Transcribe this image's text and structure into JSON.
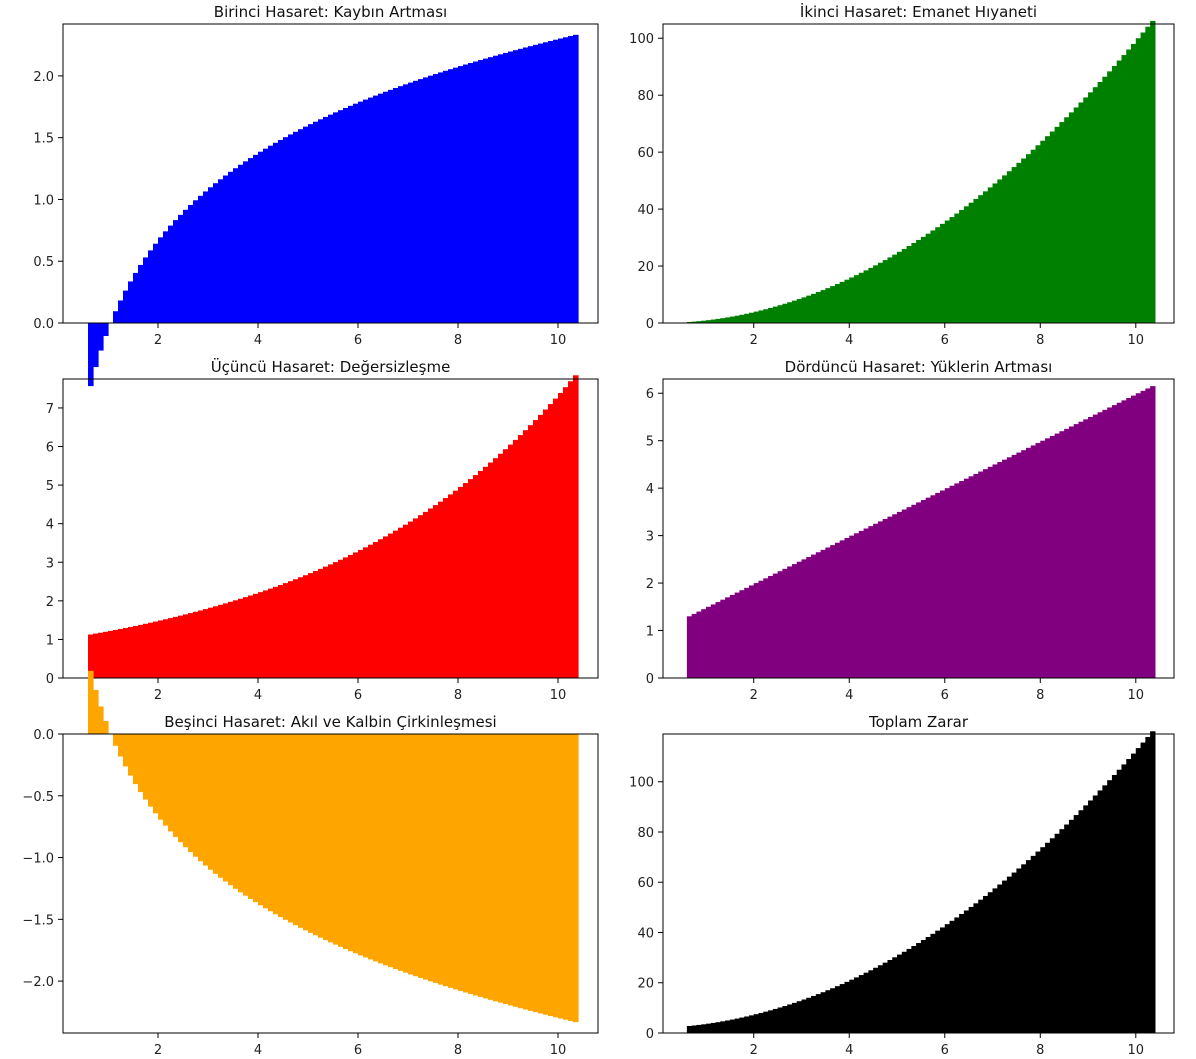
{
  "chart_data": [
    {
      "type": "bar",
      "title": "Birinci Hasaret: Kaybın Artması",
      "color": "#0000ff",
      "x_formula": "x_i = 0.6 + 0.1*i, i = 0..97 (x from 0.6 to 10.3), bar width 0.1",
      "y_formula": "ln(x)",
      "xlim": [
        0.1,
        10.8
      ],
      "ylim": [
        0,
        2.42
      ],
      "xticks": [
        2,
        4,
        6,
        8,
        10
      ],
      "xtick_labels": [
        "2",
        "4",
        "6",
        "8",
        "10"
      ],
      "yticks": [
        0,
        0.5,
        1.0,
        1.5,
        2.0
      ],
      "ytick_labels": [
        "0.0",
        "0.5",
        "1.0",
        "1.5",
        "2.0"
      ]
    },
    {
      "type": "bar",
      "title": "İkinci Hasaret: Emanet Hıyaneti",
      "color": "#008000",
      "x_formula": "x_i = 0.6 + 0.1*i, i = 0..97, bar width 0.1",
      "y_formula": "x^2",
      "xlim": [
        0.1,
        10.8
      ],
      "ylim": [
        0,
        105
      ],
      "xticks": [
        2,
        4,
        6,
        8,
        10
      ],
      "xtick_labels": [
        "2",
        "4",
        "6",
        "8",
        "10"
      ],
      "yticks": [
        0,
        20,
        40,
        60,
        80,
        100
      ],
      "ytick_labels": [
        "0",
        "20",
        "40",
        "60",
        "80",
        "100"
      ]
    },
    {
      "type": "bar",
      "title": "Üçüncü Hasaret: Değersizleşme",
      "color": "#ff0000",
      "x_formula": "x_i = 0.6 + 0.1*i, i = 0..97, bar width 0.1",
      "y_formula": "exp(0.2x)",
      "xlim": [
        0.1,
        10.8
      ],
      "ylim": [
        0,
        7.75
      ],
      "xticks": [
        2,
        4,
        6,
        8,
        10
      ],
      "xtick_labels": [
        "2",
        "4",
        "6",
        "8",
        "10"
      ],
      "yticks": [
        0,
        1,
        2,
        3,
        4,
        5,
        6,
        7
      ],
      "ytick_labels": [
        "0",
        "1",
        "2",
        "3",
        "4",
        "5",
        "6",
        "7"
      ]
    },
    {
      "type": "bar",
      "title": "Dördüncü Hasaret: Yüklerin Artması",
      "color": "#800080",
      "x_formula": "x_i = 0.6 + 0.1*i, i = 0..97, bar width 0.1",
      "y_formula": "0.5x + 1",
      "xlim": [
        0.1,
        10.8
      ],
      "ylim": [
        0,
        6.3
      ],
      "xticks": [
        2,
        4,
        6,
        8,
        10
      ],
      "xtick_labels": [
        "2",
        "4",
        "6",
        "8",
        "10"
      ],
      "yticks": [
        0,
        1,
        2,
        3,
        4,
        5,
        6
      ],
      "ytick_labels": [
        "0",
        "1",
        "2",
        "3",
        "4",
        "5",
        "6"
      ]
    },
    {
      "type": "bar",
      "title": "Beşinci Hasaret: Akıl ve Kalbin Çirkinleşmesi",
      "color": "#ffa500",
      "x_formula": "x_i = 0.6 + 0.1*i, i = 0..97, bar width 0.1",
      "y_formula": "-ln(x)",
      "xlim": [
        0.1,
        10.8
      ],
      "ylim": [
        -2.42,
        0
      ],
      "xticks": [
        2,
        4,
        6,
        8,
        10
      ],
      "xtick_labels": [
        "2",
        "4",
        "6",
        "8",
        "10"
      ],
      "yticks": [
        0,
        -0.5,
        -1.0,
        -1.5,
        -2.0
      ],
      "ytick_labels": [
        "0.0",
        "−0.5",
        "−1.0",
        "−1.5",
        "−2.0"
      ]
    },
    {
      "type": "bar",
      "title": "Toplam Zarar",
      "color": "#000000",
      "x_formula": "x_i = 0.6 + 0.1*i, i = 0..97, bar width 0.1",
      "y_formula": "ln(x) + x^2 + exp(0.2x) + 0.5x + 1 - ln(x)",
      "xlim": [
        0.1,
        10.8
      ],
      "ylim": [
        0,
        119
      ],
      "xticks": [
        2,
        4,
        6,
        8,
        10
      ],
      "xtick_labels": [
        "2",
        "4",
        "6",
        "8",
        "10"
      ],
      "yticks": [
        0,
        20,
        40,
        60,
        80,
        100
      ],
      "ytick_labels": [
        "0",
        "20",
        "40",
        "60",
        "80",
        "100"
      ]
    }
  ]
}
